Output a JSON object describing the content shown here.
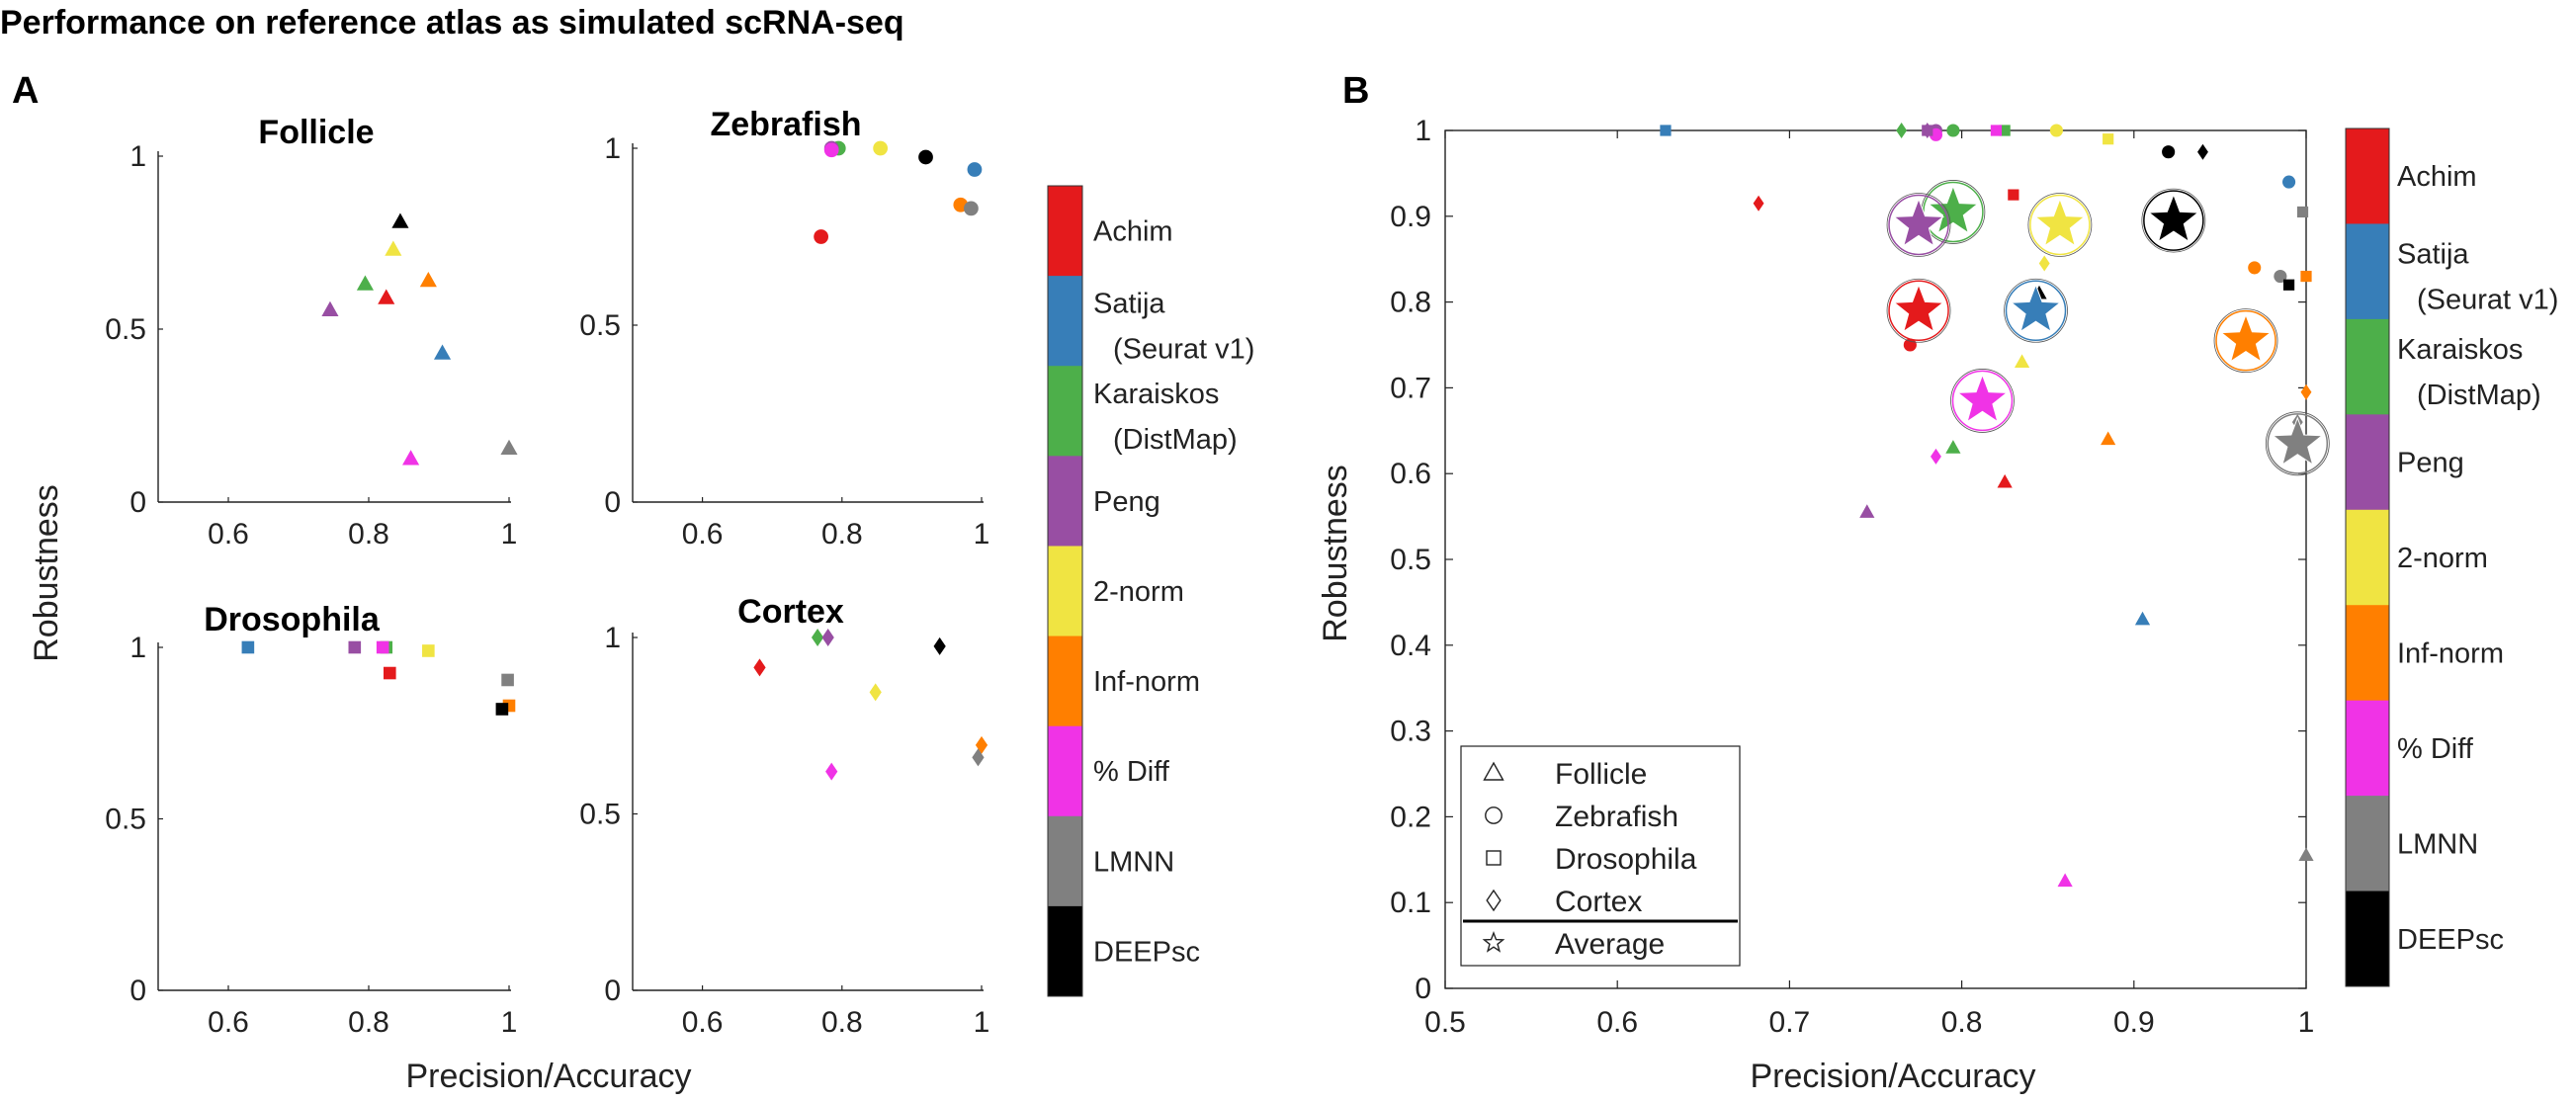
{
  "figure": {
    "title": "Performance on reference atlas as simulated scRNA-seq",
    "panel_a_label": "A",
    "panel_b_label": "B",
    "a_xlabel": "Precision/Accuracy",
    "a_ylabel": "Robustness",
    "b_xlabel": "Precision/Accuracy",
    "b_ylabel": "Robustness"
  },
  "methods": [
    {
      "name": "Achim",
      "sub": "",
      "color": "#e41a1c"
    },
    {
      "name": "Satija",
      "sub": "(Seurat v1)",
      "color": "#377eb8"
    },
    {
      "name": "Karaiskos",
      "sub": "(DistMap)",
      "color": "#4daf4a"
    },
    {
      "name": "Peng",
      "sub": "",
      "color": "#984ea3"
    },
    {
      "name": "2-norm",
      "sub": "",
      "color": "#f0e442"
    },
    {
      "name": "Inf-norm",
      "sub": "",
      "color": "#ff7f00"
    },
    {
      "name": "% Diff",
      "sub": "",
      "color": "#f033e6"
    },
    {
      "name": "LMNN",
      "sub": "",
      "color": "#808080"
    },
    {
      "name": "DEEPsc",
      "sub": "",
      "color": "#000000"
    }
  ],
  "shape_legend": [
    {
      "label": "Follicle",
      "marker": "triangle"
    },
    {
      "label": "Zebrafish",
      "marker": "circle"
    },
    {
      "label": "Drosophila",
      "marker": "square"
    },
    {
      "label": "Cortex",
      "marker": "diamond"
    },
    {
      "label": "Average",
      "marker": "star"
    }
  ],
  "chart_data": [
    {
      "type": "scatter",
      "title": "Follicle",
      "marker": "triangle",
      "xlabel": "Precision/Accuracy",
      "ylabel": "Robustness",
      "xlim": [
        0.5,
        1.0
      ],
      "ylim": [
        0,
        1
      ],
      "xticks": [
        "0.6",
        "0.8",
        "1"
      ],
      "yticks": [
        "0",
        "0.5",
        "1"
      ],
      "points": {
        "Achim": [
          0.825,
          0.59
        ],
        "Satija": [
          0.905,
          0.43
        ],
        "Karaiskos": [
          0.795,
          0.63
        ],
        "Peng": [
          0.745,
          0.555
        ],
        "2-norm": [
          0.835,
          0.73
        ],
        "Inf-norm": [
          0.885,
          0.64
        ],
        "% Diff": [
          0.86,
          0.125
        ],
        "LMNN": [
          1.0,
          0.155
        ],
        "DEEPsc": [
          0.845,
          0.81
        ]
      }
    },
    {
      "type": "scatter",
      "title": "Zebrafish",
      "marker": "circle",
      "xlabel": "Precision/Accuracy",
      "ylabel": "Robustness",
      "xlim": [
        0.5,
        1.0
      ],
      "ylim": [
        0,
        1
      ],
      "xticks": [
        "0.6",
        "0.8",
        "1"
      ],
      "yticks": [
        "0",
        "0.5",
        "1"
      ],
      "points": {
        "Achim": [
          0.77,
          0.75
        ],
        "Satija": [
          0.99,
          0.94
        ],
        "Karaiskos": [
          0.795,
          1.0
        ],
        "Peng": [
          0.785,
          1.0
        ],
        "2-norm": [
          0.855,
          1.0
        ],
        "Inf-norm": [
          0.97,
          0.84
        ],
        "% Diff": [
          0.785,
          0.995
        ],
        "LMNN": [
          0.985,
          0.83
        ],
        "DEEPsc": [
          0.92,
          0.975
        ]
      }
    },
    {
      "type": "scatter",
      "title": "Drosophila",
      "marker": "square",
      "xlabel": "Precision/Accuracy",
      "ylabel": "Robustness",
      "xlim": [
        0.5,
        1.0
      ],
      "ylim": [
        0,
        1
      ],
      "xticks": [
        "0.6",
        "0.8",
        "1"
      ],
      "yticks": [
        "0",
        "0.5",
        "1"
      ],
      "points": {
        "Achim": [
          0.83,
          0.925
        ],
        "Satija": [
          0.628,
          1.0
        ],
        "Karaiskos": [
          0.825,
          1.0
        ],
        "Peng": [
          0.78,
          1.0
        ],
        "2-norm": [
          0.885,
          0.99
        ],
        "Inf-norm": [
          1.0,
          0.83
        ],
        "% Diff": [
          0.82,
          1.0
        ],
        "LMNN": [
          0.998,
          0.905
        ],
        "DEEPsc": [
          0.99,
          0.82
        ]
      }
    },
    {
      "type": "scatter",
      "title": "Cortex",
      "marker": "diamond",
      "xlabel": "Precision/Accuracy",
      "ylabel": "Robustness",
      "xlim": [
        0.5,
        1.0
      ],
      "ylim": [
        0,
        1
      ],
      "xticks": [
        "0.6",
        "0.8",
        "1"
      ],
      "yticks": [
        "0",
        "0.5",
        "1"
      ],
      "points": {
        "Achim": [
          0.682,
          0.915
        ],
        "Satija": null,
        "Karaiskos": [
          0.765,
          1.0
        ],
        "Peng": [
          0.78,
          1.0
        ],
        "2-norm": [
          0.848,
          0.845
        ],
        "Inf-norm": [
          1.0,
          0.695
        ],
        "% Diff": [
          0.785,
          0.62
        ],
        "LMNN": [
          0.995,
          0.66
        ],
        "DEEPsc": [
          0.94,
          0.975
        ]
      }
    },
    {
      "type": "scatter",
      "title": "",
      "marker": "mixed",
      "xlabel": "Precision/Accuracy",
      "ylabel": "Robustness",
      "xlim": [
        0.5,
        1.0
      ],
      "ylim": [
        0,
        1
      ],
      "xticks": [
        "0.5",
        "0.6",
        "0.7",
        "0.8",
        "0.9",
        "1"
      ],
      "yticks": [
        "0",
        "0.1",
        "0.2",
        "0.3",
        "0.4",
        "0.5",
        "0.6",
        "0.7",
        "0.8",
        "0.9",
        "1"
      ],
      "series_from_panels": [
        "Follicle",
        "Zebrafish",
        "Drosophila",
        "Cortex"
      ],
      "average": {
        "Achim": [
          0.775,
          0.79
        ],
        "Satija": [
          0.843,
          0.79
        ],
        "Karaiskos": [
          0.795,
          0.905
        ],
        "Peng": [
          0.775,
          0.89
        ],
        "2-norm": [
          0.857,
          0.89
        ],
        "Inf-norm": [
          0.965,
          0.755
        ],
        "% Diff": [
          0.812,
          0.685
        ],
        "LMNN": [
          0.995,
          0.635
        ],
        "DEEPsc": [
          0.923,
          0.895
        ]
      }
    }
  ]
}
